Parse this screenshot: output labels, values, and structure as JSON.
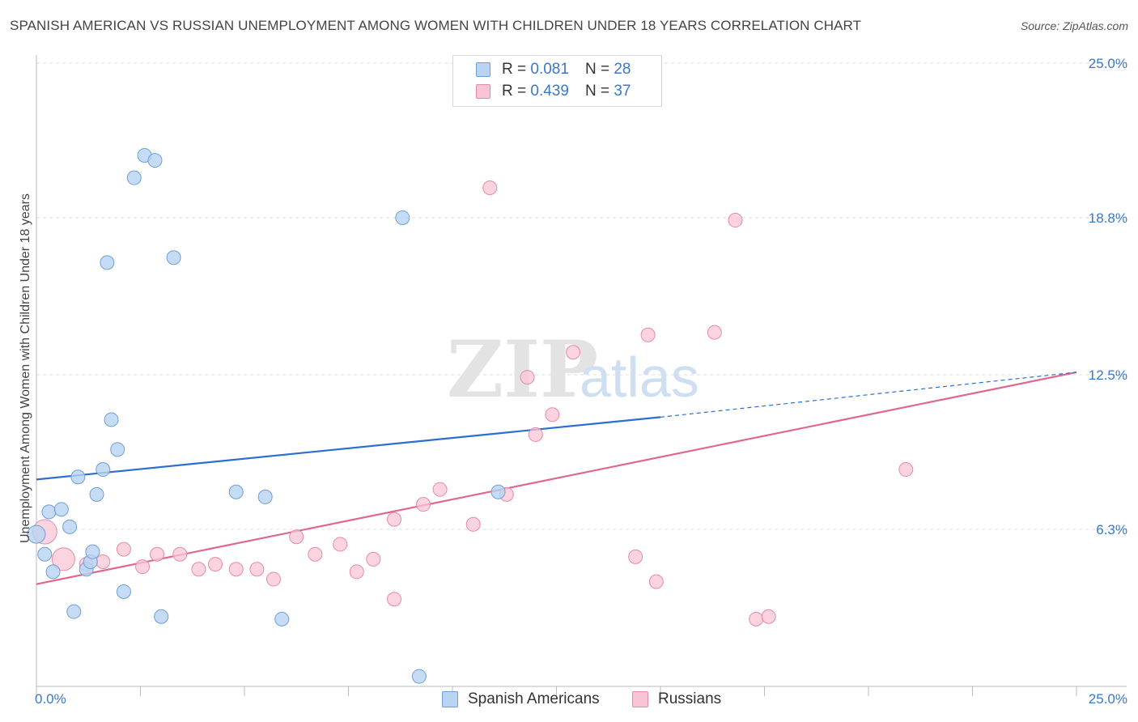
{
  "title": "SPANISH AMERICAN VS RUSSIAN UNEMPLOYMENT AMONG WOMEN WITH CHILDREN UNDER 18 YEARS CORRELATION CHART",
  "source": "Source: ZipAtlas.com",
  "watermark": {
    "zip": "ZIP",
    "atlas": "atlas"
  },
  "legend": {
    "rows": [
      {
        "r_label": "R =",
        "r_value": "0.081",
        "n_label": "N =",
        "n_value": "28"
      },
      {
        "r_label": "R =",
        "r_value": "0.439",
        "n_label": "N =",
        "n_value": "37"
      }
    ]
  },
  "colors": {
    "blue_fill": "#b8d3f3",
    "blue_stroke": "#6e9fd8",
    "blue_line": "#2a6fcf",
    "pink_fill": "#f9c5d5",
    "pink_stroke": "#e68aa8",
    "pink_line": "#e0668f",
    "tick_text": "#3a78c9",
    "grid": "#dddddd"
  },
  "chart_data": {
    "type": "scatter",
    "title": "SPANISH AMERICAN VS RUSSIAN UNEMPLOYMENT AMONG WOMEN WITH CHILDREN UNDER 18 YEARS CORRELATION CHART",
    "xlabel": "",
    "ylabel": "Unemployment Among Women with Children Under 18 years",
    "xlim": [
      0,
      25
    ],
    "ylim": [
      0,
      25
    ],
    "x_tick_labels": [
      "0.0%",
      "25.0%"
    ],
    "y_tick_labels": [
      "25.0%",
      "18.8%",
      "12.5%",
      "6.3%"
    ],
    "y_ticks": [
      25.0,
      18.8,
      12.5,
      6.3
    ],
    "grid": true,
    "legend_position": "top-center",
    "series": [
      {
        "name": "Spanish Americans",
        "color": "#6e9fd8",
        "points": [
          [
            0.0,
            6.1
          ],
          [
            0.2,
            5.3
          ],
          [
            0.3,
            7.0
          ],
          [
            0.4,
            4.6
          ],
          [
            0.6,
            7.1
          ],
          [
            0.8,
            6.4
          ],
          [
            0.9,
            3.0
          ],
          [
            1.0,
            8.4
          ],
          [
            1.2,
            4.7
          ],
          [
            1.3,
            5.0
          ],
          [
            1.35,
            5.4
          ],
          [
            1.45,
            7.7
          ],
          [
            1.6,
            8.7
          ],
          [
            1.7,
            17.0
          ],
          [
            1.8,
            10.7
          ],
          [
            1.95,
            9.5
          ],
          [
            2.1,
            3.8
          ],
          [
            2.35,
            20.4
          ],
          [
            2.6,
            21.3
          ],
          [
            2.85,
            21.1
          ],
          [
            3.0,
            2.8
          ],
          [
            3.3,
            17.2
          ],
          [
            4.8,
            7.8
          ],
          [
            5.5,
            7.6
          ],
          [
            5.9,
            2.7
          ],
          [
            8.8,
            18.8
          ],
          [
            9.2,
            0.4
          ],
          [
            11.1,
            7.8
          ]
        ],
        "trend": {
          "x": [
            0.0,
            15.0
          ],
          "y": [
            8.3,
            10.8
          ]
        },
        "trend_extension": {
          "x": [
            15.0,
            25.0
          ],
          "y": [
            10.8,
            12.6
          ]
        }
      },
      {
        "name": "Russians",
        "color": "#e68aa8",
        "points": [
          [
            0.2,
            6.2
          ],
          [
            0.65,
            5.1
          ],
          [
            1.2,
            4.9
          ],
          [
            1.6,
            5.0
          ],
          [
            2.1,
            5.5
          ],
          [
            2.55,
            4.8
          ],
          [
            2.9,
            5.3
          ],
          [
            3.45,
            5.3
          ],
          [
            3.9,
            4.7
          ],
          [
            4.3,
            4.9
          ],
          [
            4.8,
            4.7
          ],
          [
            5.3,
            4.7
          ],
          [
            5.7,
            4.3
          ],
          [
            6.25,
            6.0
          ],
          [
            6.7,
            5.3
          ],
          [
            7.3,
            5.7
          ],
          [
            7.7,
            4.6
          ],
          [
            8.1,
            5.1
          ],
          [
            8.6,
            3.5
          ],
          [
            8.6,
            6.7
          ],
          [
            9.3,
            7.3
          ],
          [
            9.7,
            7.9
          ],
          [
            10.5,
            6.5
          ],
          [
            10.9,
            20.0
          ],
          [
            11.3,
            7.7
          ],
          [
            11.8,
            12.4
          ],
          [
            12.0,
            10.1
          ],
          [
            12.4,
            10.9
          ],
          [
            12.9,
            13.4
          ],
          [
            14.4,
            5.2
          ],
          [
            14.7,
            14.1
          ],
          [
            14.9,
            4.2
          ],
          [
            16.3,
            14.2
          ],
          [
            16.8,
            18.7
          ],
          [
            17.3,
            2.7
          ],
          [
            17.6,
            2.8
          ],
          [
            20.9,
            8.7
          ]
        ],
        "trend": {
          "x": [
            0.0,
            25.0
          ],
          "y": [
            4.1,
            12.6
          ]
        }
      }
    ]
  },
  "bottom_legend": [
    {
      "label": "Spanish Americans"
    },
    {
      "label": "Russians"
    }
  ]
}
